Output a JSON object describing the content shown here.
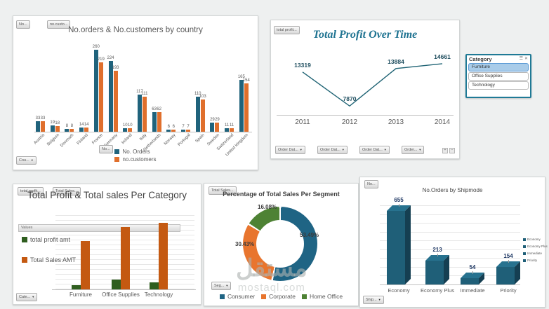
{
  "app": {
    "background": "#eef0f0"
  },
  "icons": {
    "dropdown_arrow": "▼",
    "slicer_multiselect": "☰",
    "slicer_clear_filter": "✕",
    "pivot_expand": "+",
    "pivot_collapse": "−"
  },
  "watermark": {
    "text": "مستقل",
    "subtext": "mostaql.com"
  },
  "slicer": {
    "title": "Category",
    "items": [
      {
        "label": "Furniture",
        "selected": true
      },
      {
        "label": "Office Supplies",
        "selected": false
      },
      {
        "label": "Technology",
        "selected": false
      }
    ],
    "border_color": "#1F7A96",
    "selected_fill": "#A9CCE9"
  },
  "field_buttons": {
    "c1_top_1": "No...",
    "c1_top_2": "no.custo...",
    "c1_axis_overlay": "No...",
    "c1_bottom": "Cou...",
    "c2_top": "total profit...",
    "c2_bottom_1": "Order Dat...",
    "c2_bottom_2": "Order Dat...",
    "c2_bottom_3": "Order Dat...",
    "c2_bottom_4": "Order...",
    "c3_top_1": "total profit...",
    "c3_top_2": "Total Sales...",
    "c3_values_bar": "Values",
    "c3_bottom": "Cate...",
    "c4_top": "Total Sales...",
    "c4_bottom": "Seg...",
    "c5_top": "No...",
    "c5_bottom": "Ship..."
  },
  "chart_data": [
    {
      "id": "orders-customers-by-country",
      "type": "bar",
      "title": "No.orders & No.customers by country",
      "categories": [
        "Austria",
        "Belgium",
        "Denmark",
        "Finland",
        "France",
        "Germany",
        "Ireland",
        "Italy",
        "Netherlands",
        "Norway",
        "Portugal",
        "Spain",
        "Sweden",
        "Switzerland",
        "United Kingdom"
      ],
      "series": [
        {
          "name": "No. Orders",
          "color": "#20637C",
          "values": [
            33,
            19,
            8,
            14,
            260,
            224,
            10,
            117,
            63,
            6,
            7,
            110,
            29,
            11,
            165
          ]
        },
        {
          "name": "no.customers",
          "color": "#E06F2C",
          "values": [
            33,
            18,
            8,
            14,
            219,
            193,
            10,
            111,
            62,
            6,
            7,
            103,
            29,
            11,
            154
          ]
        }
      ],
      "data_labels": true,
      "ylim": [
        0,
        280
      ],
      "legend_position": "bottom",
      "grid": false
    },
    {
      "id": "total-profit-over-time",
      "type": "line",
      "title": "Total Profit Over Time",
      "x": [
        "2011",
        "2012",
        "2013",
        "2014"
      ],
      "values": [
        13319,
        7870,
        13884,
        14661
      ],
      "color": "#1F6374",
      "label_color": "#1F4E5F",
      "data_labels": true,
      "ylim": [
        7000,
        16000
      ],
      "grid": false
    },
    {
      "id": "profit-sales-per-category",
      "type": "bar",
      "title": "Total Profit & Total sales Per Category",
      "categories": [
        "Furniture",
        "Office Supplies",
        "Technology"
      ],
      "series": [
        {
          "name": "total profit amt",
          "color": "#2F5E1F",
          "values_pct_of_max": [
            6,
            15,
            11
          ]
        },
        {
          "name": "Total Sales AMT",
          "color": "#C45911",
          "values_pct_of_max": [
            73,
            94,
            100
          ]
        }
      ],
      "note": "no numeric axis or data labels visible; bar heights estimated as % of tallest bar",
      "legend_position": "left",
      "grid": true
    },
    {
      "id": "sales-percentage-per-segment",
      "type": "pie",
      "subtype": "donut",
      "title": "Percentage of Total Sales Per Segment",
      "labels": [
        "Consumer",
        "Corporate",
        "Home Office"
      ],
      "values_pct": [
        53.49,
        30.43,
        16.08
      ],
      "value_labels": [
        "53.49%",
        "30.43%",
        "16.08%"
      ],
      "colors": [
        "#1F6484",
        "#E8752E",
        "#4E8234"
      ],
      "legend_position": "bottom"
    },
    {
      "id": "orders-by-shipmode",
      "type": "bar",
      "subtype": "3d-column",
      "title": "No.Orders by Shipmode",
      "categories": [
        "Economy",
        "Economy Plus",
        "Immediate",
        "Priority"
      ],
      "values": [
        655,
        213,
        54,
        154
      ],
      "color": "#1F5F78",
      "legend": [
        "Economy",
        "Economy Plus",
        "Immediate",
        "Priority"
      ],
      "legend_position": "right",
      "data_labels": true,
      "grid": true
    }
  ]
}
